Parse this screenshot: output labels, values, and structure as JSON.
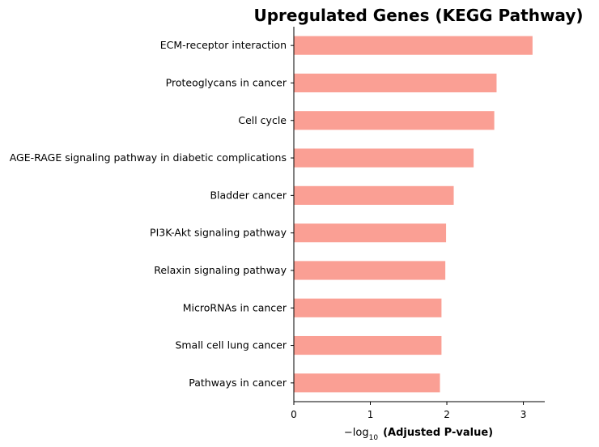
{
  "chart_data": {
    "type": "bar",
    "orientation": "horizontal",
    "title": "Upregulated Genes (KEGG Pathway)",
    "xlabel_prefix": "−log",
    "xlabel_subscript": "10",
    "xlabel_main": "(Adjusted P-value)",
    "ylabel": "",
    "categories": [
      "ECM-receptor interaction",
      "Proteoglycans in cancer",
      "Cell cycle",
      "AGE-RAGE signaling pathway in diabetic complications",
      "Bladder cancer",
      "PI3K-Akt signaling pathway",
      "Relaxin signaling pathway",
      "MicroRNAs in cancer",
      "Small cell lung cancer",
      "Pathways in cancer"
    ],
    "values": [
      3.12,
      2.65,
      2.62,
      2.35,
      2.09,
      1.99,
      1.98,
      1.93,
      1.93,
      1.91
    ],
    "xlim": [
      0,
      3.28
    ],
    "xticks": [
      "0",
      "1",
      "2",
      "3"
    ],
    "bar_color": "#fa9f94",
    "grid": false
  }
}
